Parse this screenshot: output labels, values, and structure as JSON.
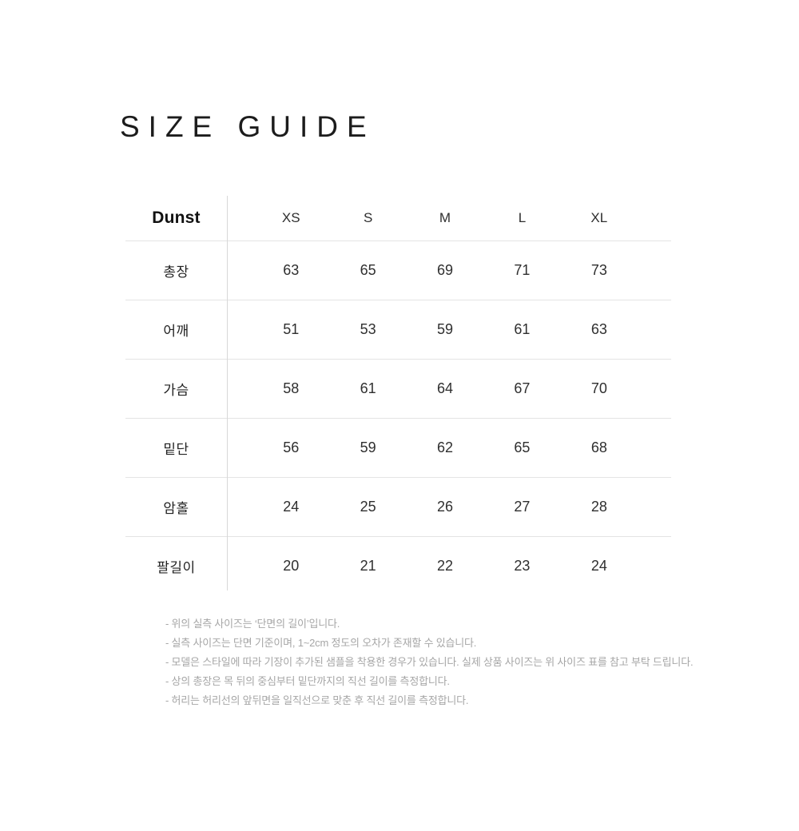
{
  "title": "SIZE GUIDE",
  "table": {
    "brand": "Dunst",
    "sizes": [
      "XS",
      "S",
      "M",
      "L",
      "XL"
    ],
    "rows": [
      {
        "label": "총장",
        "values": [
          "63",
          "65",
          "69",
          "71",
          "73"
        ]
      },
      {
        "label": "어깨",
        "values": [
          "51",
          "53",
          "59",
          "61",
          "63"
        ]
      },
      {
        "label": "가슴",
        "values": [
          "58",
          "61",
          "64",
          "67",
          "70"
        ]
      },
      {
        "label": "밑단",
        "values": [
          "56",
          "59",
          "62",
          "65",
          "68"
        ]
      },
      {
        "label": "암홀",
        "values": [
          "24",
          "25",
          "26",
          "27",
          "28"
        ]
      },
      {
        "label": "팔길이",
        "values": [
          "20",
          "21",
          "22",
          "23",
          "24"
        ]
      }
    ]
  },
  "notes": [
    "- 위의 실측 사이즈는 ‘단면의 길이’입니다.",
    "- 실측 사이즈는 단면 기준이며, 1~2cm 정도의 오차가 존재할 수 있습니다.",
    "- 모델은 스타일에 따라 기장이 추가된 샘플을 착용한 경우가 있습니다. 실제 상품 사이즈는 위 사이즈 표를 참고 부탁 드립니다.",
    "- 상의 총장은 목 뒤의 중심부터 밑단까지의 직선 길이를 측정합니다.",
    "- 허리는 허리선의 앞뒤면을 일직선으로 맞춘 후 직선 길이를 측정합니다."
  ],
  "colors": {
    "text_dark": "#1c1c1c",
    "text_value": "#2f2f2f",
    "note_gray": "#a6a6a6",
    "line_gray": "#e4e4e4"
  }
}
